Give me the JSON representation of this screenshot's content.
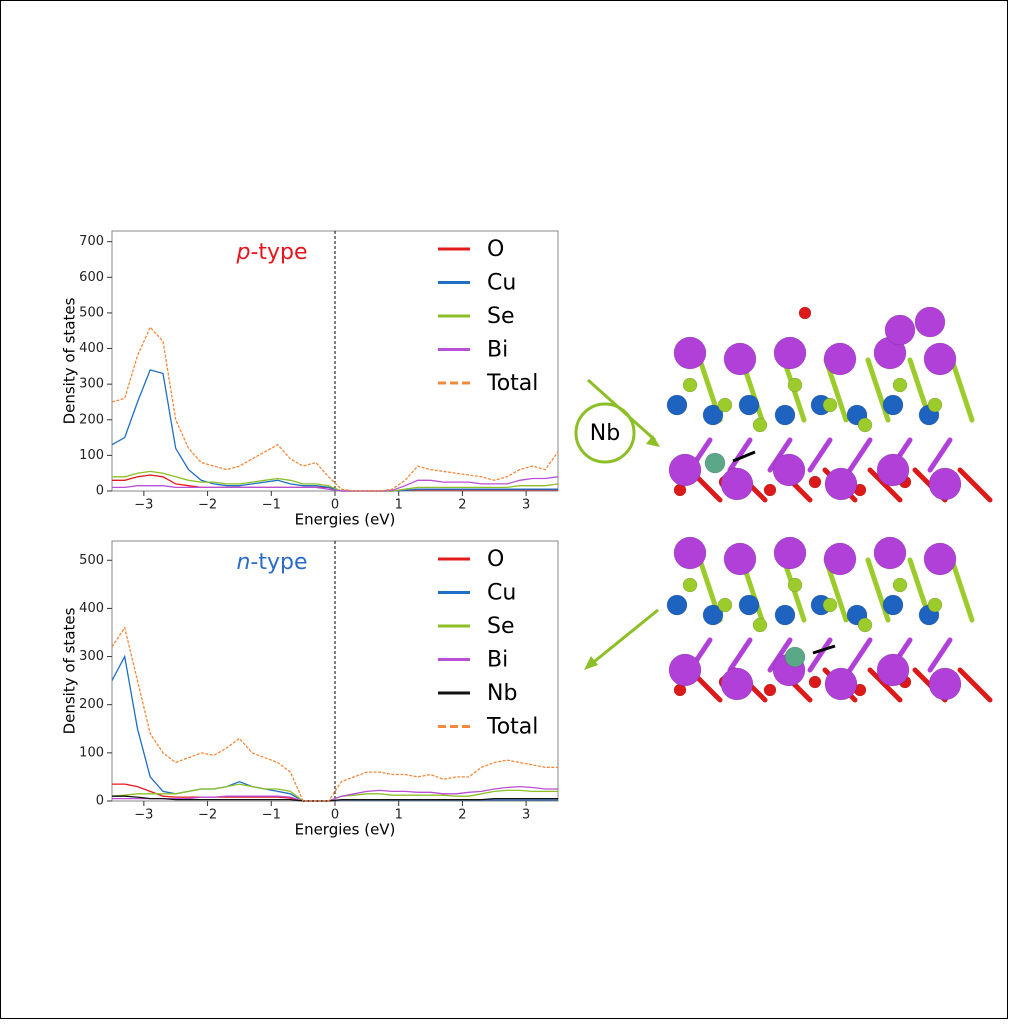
{
  "chart_data": [
    {
      "type": "line",
      "annotation": "p-type",
      "annotation_color": "#e8141c",
      "xlabel": "Energies (eV)",
      "ylabel": "Density of states",
      "xlim": [
        -3.5,
        3.5
      ],
      "ylim": [
        0,
        730
      ],
      "xticks": [
        {
          "value": -3,
          "label": "−3"
        },
        {
          "value": -2,
          "label": "−2"
        },
        {
          "value": -1,
          "label": "−1"
        },
        0,
        1,
        2,
        3
      ],
      "yticks": [
        0,
        100,
        200,
        300,
        400,
        500,
        600,
        700
      ],
      "x": [
        -3.5,
        -3.3,
        -3.1,
        -2.9,
        -2.7,
        -2.5,
        -2.3,
        -2.1,
        -1.9,
        -1.7,
        -1.5,
        -1.3,
        -1.1,
        -0.9,
        -0.7,
        -0.5,
        -0.3,
        -0.1,
        0.1,
        0.3,
        0.5,
        0.7,
        0.9,
        1.1,
        1.3,
        1.5,
        1.7,
        1.9,
        2.1,
        2.3,
        2.5,
        2.7,
        2.9,
        3.1,
        3.3,
        3.5
      ],
      "series": [
        {
          "name": "O",
          "color": "#e41a1c",
          "dashed": false,
          "values": [
            30,
            30,
            40,
            45,
            40,
            20,
            15,
            10,
            10,
            10,
            10,
            10,
            10,
            10,
            10,
            10,
            10,
            10,
            0,
            0,
            0,
            0,
            0,
            2,
            3,
            3,
            3,
            3,
            3,
            3,
            3,
            3,
            3,
            3,
            3,
            3
          ]
        },
        {
          "name": "Cu",
          "color": "#1f6fc4",
          "dashed": false,
          "values": [
            130,
            150,
            250,
            340,
            330,
            120,
            60,
            30,
            20,
            15,
            15,
            20,
            25,
            30,
            20,
            15,
            15,
            10,
            0,
            0,
            0,
            0,
            0,
            2,
            5,
            5,
            5,
            5,
            5,
            5,
            5,
            5,
            5,
            5,
            5,
            5
          ]
        },
        {
          "name": "Se",
          "color": "#8cbf26",
          "dashed": false,
          "values": [
            40,
            40,
            50,
            55,
            50,
            40,
            30,
            25,
            25,
            20,
            20,
            25,
            30,
            35,
            30,
            20,
            20,
            15,
            0,
            0,
            0,
            0,
            0,
            5,
            10,
            10,
            10,
            10,
            10,
            10,
            10,
            10,
            15,
            15,
            15,
            20
          ]
        },
        {
          "name": "Bi",
          "color": "#b94fd6",
          "dashed": false,
          "values": [
            10,
            10,
            15,
            15,
            15,
            10,
            10,
            10,
            10,
            10,
            10,
            10,
            10,
            10,
            10,
            10,
            10,
            5,
            0,
            0,
            0,
            0,
            2,
            15,
            30,
            30,
            25,
            25,
            25,
            20,
            20,
            20,
            30,
            35,
            35,
            40
          ]
        },
        {
          "name": "Total",
          "color": "#f5883a",
          "dashed": true,
          "values": [
            250,
            260,
            380,
            460,
            420,
            200,
            120,
            80,
            70,
            60,
            70,
            90,
            110,
            130,
            90,
            70,
            80,
            40,
            5,
            0,
            0,
            0,
            5,
            30,
            70,
            60,
            55,
            50,
            45,
            40,
            30,
            40,
            60,
            70,
            60,
            110
          ]
        }
      ]
    },
    {
      "type": "line",
      "annotation": "n-type",
      "annotation_color": "#2a6cc7",
      "xlabel": "Energies (eV)",
      "ylabel": "Density of states",
      "xlim": [
        -3.5,
        3.5
      ],
      "ylim": [
        0,
        540
      ],
      "xticks": [
        {
          "value": -3,
          "label": "−3"
        },
        {
          "value": -2,
          "label": "−2"
        },
        {
          "value": -1,
          "label": "−1"
        },
        0,
        1,
        2,
        3
      ],
      "yticks": [
        0,
        100,
        200,
        300,
        400,
        500
      ],
      "x": [
        -3.5,
        -3.3,
        -3.1,
        -2.9,
        -2.7,
        -2.5,
        -2.3,
        -2.1,
        -1.9,
        -1.7,
        -1.5,
        -1.3,
        -1.1,
        -0.9,
        -0.7,
        -0.5,
        -0.3,
        -0.1,
        0.1,
        0.3,
        0.5,
        0.7,
        0.9,
        1.1,
        1.3,
        1.5,
        1.7,
        1.9,
        2.1,
        2.3,
        2.5,
        2.7,
        2.9,
        3.1,
        3.3,
        3.5
      ],
      "series": [
        {
          "name": "O",
          "color": "#e41a1c",
          "dashed": false,
          "values": [
            35,
            35,
            30,
            20,
            10,
            8,
            8,
            8,
            8,
            8,
            8,
            8,
            8,
            8,
            6,
            0,
            0,
            0,
            2,
            2,
            2,
            2,
            2,
            2,
            2,
            2,
            2,
            2,
            2,
            2,
            2,
            2,
            2,
            2,
            2,
            2
          ]
        },
        {
          "name": "Cu",
          "color": "#1f6fc4",
          "dashed": false,
          "values": [
            250,
            300,
            150,
            50,
            20,
            15,
            20,
            25,
            25,
            30,
            40,
            30,
            25,
            20,
            15,
            0,
            0,
            0,
            2,
            2,
            2,
            2,
            2,
            2,
            2,
            2,
            2,
            2,
            2,
            2,
            2,
            2,
            2,
            2,
            2,
            2
          ]
        },
        {
          "name": "Se",
          "color": "#8cbf26",
          "dashed": false,
          "values": [
            10,
            12,
            15,
            15,
            15,
            15,
            20,
            25,
            25,
            30,
            35,
            30,
            25,
            25,
            20,
            0,
            0,
            0,
            10,
            12,
            15,
            15,
            12,
            12,
            12,
            12,
            12,
            10,
            10,
            15,
            20,
            22,
            22,
            20,
            20,
            20
          ]
        },
        {
          "name": "Bi",
          "color": "#b94fd6",
          "dashed": false,
          "values": [
            5,
            5,
            5,
            5,
            5,
            5,
            5,
            8,
            8,
            10,
            10,
            10,
            10,
            10,
            8,
            0,
            0,
            0,
            10,
            15,
            20,
            22,
            20,
            20,
            18,
            18,
            15,
            15,
            18,
            20,
            25,
            28,
            30,
            28,
            25,
            25
          ]
        },
        {
          "name": "Nb",
          "color": "#111111",
          "dashed": false,
          "values": [
            10,
            10,
            8,
            5,
            5,
            3,
            3,
            3,
            3,
            3,
            3,
            3,
            3,
            3,
            3,
            0,
            0,
            0,
            3,
            3,
            3,
            3,
            3,
            3,
            3,
            3,
            3,
            3,
            3,
            3,
            5,
            5,
            5,
            5,
            5,
            5
          ]
        },
        {
          "name": "Total",
          "color": "#f5883a",
          "dashed": true,
          "values": [
            320,
            360,
            250,
            140,
            100,
            80,
            90,
            100,
            95,
            110,
            130,
            100,
            90,
            80,
            60,
            0,
            0,
            0,
            40,
            50,
            60,
            60,
            55,
            55,
            50,
            55,
            45,
            50,
            50,
            70,
            80,
            85,
            80,
            75,
            70,
            70
          ]
        }
      ]
    }
  ],
  "structure": {
    "label": "Nb"
  }
}
